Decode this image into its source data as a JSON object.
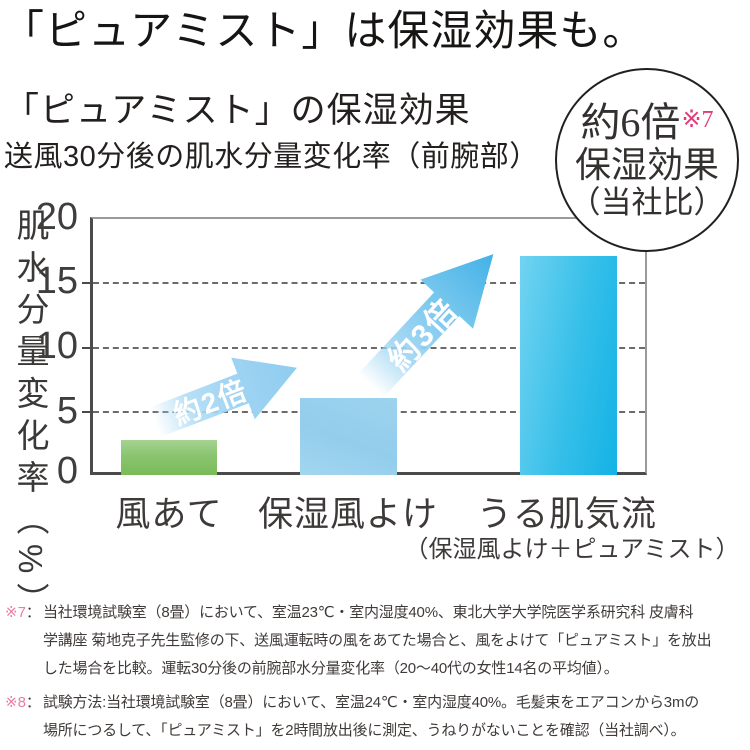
{
  "header": {
    "title": "「ピュアミスト」は保湿効果も。",
    "subtitle": "「ピュアミスト」の保湿効果",
    "measure_label": "送風30分後の肌水分量変化率（前腕部）"
  },
  "badge": {
    "value": "約6倍",
    "ref": "※7",
    "line2": "保湿効果",
    "line3": "（当社比）"
  },
  "chart_data": {
    "type": "bar",
    "title": "「ピュアミスト」の保湿効果　送風30分後の肌水分量変化率（前腕部）",
    "ylabel": "肌水分量変化率（%）",
    "xlabel": "",
    "unit": "%",
    "ylim": [
      0,
      20
    ],
    "yticks": [
      0,
      5,
      10,
      15,
      20
    ],
    "grid": "horizontal dashed at 5/10/15, solid border at 20",
    "legend_position": "none",
    "categories": [
      "風あて",
      "保湿風よけ",
      "うる肌気流"
    ],
    "category_note": "うる肌気流＝（保湿風よけ＋ピュアミスト）",
    "values": [
      2.7,
      6,
      17
    ],
    "bar_colors": [
      "#79bb5a",
      "#93cdec",
      "#22b9e7"
    ],
    "annotations": [
      {
        "label": "約2倍",
        "from": "風あて",
        "to": "保湿風よけ"
      },
      {
        "label": "約3倍",
        "from": "保湿風よけ",
        "to": "うる肌気流"
      },
      {
        "label": "約6倍※7 保湿効果（当社比）",
        "type": "circle-badge"
      }
    ]
  },
  "axis": {
    "yticks": [
      "20",
      "15",
      "10",
      "5",
      "0"
    ],
    "ylabel": "肌水分量変化率（%）"
  },
  "xaxis": {
    "labels": [
      "風あて",
      "保湿風よけ",
      "うる肌気流"
    ],
    "note": "（保湿風よけ＋ピュアミスト）"
  },
  "arrows": {
    "x2": "約2倍",
    "x3": "約3倍"
  },
  "footnotes": [
    {
      "marker": "※7",
      "sep": "：",
      "lines": [
        "当社環境試験室（8畳）において、室温23℃・室内湿度40%、東北大学大学院医学系研究科 皮膚科",
        "学講座 菊地克子先生監修の下、送風運転時の風をあてた場合と、風をよけて「ピュアミスト」を放出",
        "した場合を比較。運転30分後の前腕部水分量変化率（20〜40代の女性14名の平均値）。"
      ]
    },
    {
      "marker": "※8",
      "sep": "：",
      "lines": [
        "試験方法:当社環境試験室（8畳）において、室温24℃・室内湿度40%。毛髪束をエアコンから3mの",
        "場所につるして、「ピュアミスト」を2時間放出後に測定、うねりがないことを確認（当社調べ）。"
      ]
    }
  ],
  "colors": {
    "accent_pink": "#de3d78",
    "footnote_pink": "#ee7ba6",
    "bar_green": "#79bb5a",
    "bar_lightblue": "#93cdec",
    "bar_cyan": "#22b9e7",
    "text_dark": "#23201f"
  }
}
